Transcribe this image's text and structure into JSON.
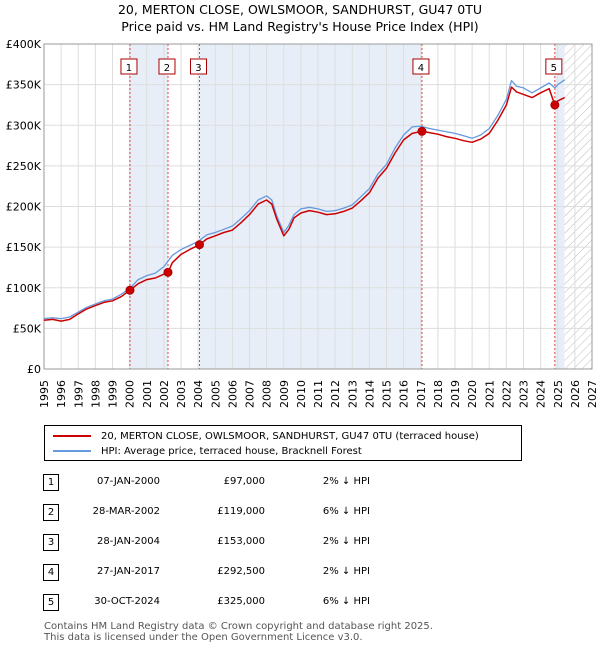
{
  "title_line1": "20, MERTON CLOSE, OWLSMOOR, SANDHURST, GU47 0TU",
  "title_line2": "Price paid vs. HM Land Registry's House Price Index (HPI)",
  "legend": {
    "property": "20, MERTON CLOSE, OWLSMOOR, SANDHURST, GU47 0TU (terraced house)",
    "hpi": "HPI: Average price, terraced house, Bracknell Forest"
  },
  "colors": {
    "property": "#cc0000",
    "hpi": "#6699dd",
    "shade": "#e8eef8",
    "vline": "#dd4444"
  },
  "sales": [
    {
      "num": "1",
      "date": "07-JAN-2000",
      "price": "£97,000",
      "hpi": "2% ↓ HPI"
    },
    {
      "num": "2",
      "date": "28-MAR-2002",
      "price": "£119,000",
      "hpi": "6% ↓ HPI"
    },
    {
      "num": "3",
      "date": "28-JAN-2004",
      "price": "£153,000",
      "hpi": "2% ↓ HPI"
    },
    {
      "num": "4",
      "date": "27-JAN-2017",
      "price": "£292,500",
      "hpi": "2% ↓ HPI"
    },
    {
      "num": "5",
      "date": "30-OCT-2024",
      "price": "£325,000",
      "hpi": "6% ↓ HPI"
    }
  ],
  "footer_line1": "Contains HM Land Registry data © Crown copyright and database right 2025.",
  "footer_line2": "This data is licensed under the Open Government Licence v3.0.",
  "chart_data": {
    "type": "line",
    "title": "20, MERTON CLOSE, OWLSMOOR, SANDHURST, GU47 0TU",
    "subtitle": "Price paid vs. HM Land Registry's House Price Index (HPI)",
    "xlabel": "",
    "ylabel": "",
    "xlim": [
      1995,
      2027
    ],
    "ylim": [
      0,
      400000
    ],
    "x_ticks": [
      "1995",
      "1996",
      "1997",
      "1998",
      "1999",
      "2000",
      "2001",
      "2002",
      "2003",
      "2004",
      "2005",
      "2006",
      "2007",
      "2008",
      "2009",
      "2010",
      "2011",
      "2012",
      "2013",
      "2014",
      "2015",
      "2016",
      "2017",
      "2018",
      "2019",
      "2020",
      "2021",
      "2022",
      "2023",
      "2024",
      "2025",
      "2026",
      "2027"
    ],
    "y_ticks": [
      {
        "value": 0,
        "label": "£0"
      },
      {
        "value": 50000,
        "label": "£50K"
      },
      {
        "value": 100000,
        "label": "£100K"
      },
      {
        "value": 150000,
        "label": "£150K"
      },
      {
        "value": 200000,
        "label": "£200K"
      },
      {
        "value": 250000,
        "label": "£250K"
      },
      {
        "value": 300000,
        "label": "£300K"
      },
      {
        "value": 350000,
        "label": "£350K"
      },
      {
        "value": 400000,
        "label": "£400K"
      }
    ],
    "grid": true,
    "shaded_ranges": [
      [
        2000.02,
        2002.24
      ],
      [
        2004.08,
        2017.07
      ],
      [
        2024.83,
        2025.4
      ]
    ],
    "future_hatch_from": 2025.4,
    "series": [
      {
        "name": "HPI: Average price, terraced house, Bracknell Forest",
        "x": [
          1995,
          1995.5,
          1996,
          1996.5,
          1997,
          1997.5,
          1998,
          1998.5,
          1999,
          1999.5,
          2000,
          2000.5,
          2001,
          2001.5,
          2002,
          2002.5,
          2003,
          2003.5,
          2004,
          2004.5,
          2005,
          2005.5,
          2006,
          2006.5,
          2007,
          2007.5,
          2008,
          2008.3,
          2008.6,
          2009,
          2009.3,
          2009.6,
          2010,
          2010.5,
          2011,
          2011.5,
          2012,
          2012.5,
          2013,
          2013.5,
          2014,
          2014.5,
          2015,
          2015.5,
          2016,
          2016.5,
          2017,
          2017.5,
          2018,
          2018.5,
          2019,
          2019.5,
          2020,
          2020.5,
          2021,
          2021.5,
          2022,
          2022.3,
          2022.6,
          2023,
          2023.5,
          2024,
          2024.5,
          2024.83,
          2025,
          2025.4
        ],
        "values": [
          62000,
          63000,
          62000,
          64000,
          70000,
          76000,
          80000,
          84000,
          86000,
          92000,
          99000,
          110000,
          115000,
          118000,
          126000,
          140000,
          147000,
          152000,
          157000,
          165000,
          168000,
          172000,
          176000,
          185000,
          195000,
          208000,
          213000,
          208000,
          188000,
          168000,
          177000,
          190000,
          197000,
          199000,
          197000,
          194000,
          195000,
          198000,
          202000,
          212000,
          222000,
          240000,
          252000,
          272000,
          288000,
          298000,
          299000,
          296000,
          294000,
          292000,
          290000,
          287000,
          284000,
          288000,
          296000,
          312000,
          332000,
          355000,
          348000,
          346000,
          340000,
          346000,
          352000,
          346000,
          350000,
          356000
        ]
      },
      {
        "name": "20, MERTON CLOSE, OWLSMOOR, SANDHURST, GU47 0TU (terraced house)",
        "x": [
          1995,
          1995.5,
          1996,
          1996.5,
          1997,
          1997.5,
          1998,
          1998.5,
          1999,
          1999.5,
          2000.02,
          2000.5,
          2001,
          2001.5,
          2002.24,
          2002.5,
          2003,
          2003.5,
          2004.08,
          2004.5,
          2005,
          2005.5,
          2006,
          2006.5,
          2007,
          2007.5,
          2008,
          2008.3,
          2008.6,
          2009,
          2009.3,
          2009.6,
          2010,
          2010.5,
          2011,
          2011.5,
          2012,
          2012.5,
          2013,
          2013.5,
          2014,
          2014.5,
          2015,
          2015.5,
          2016,
          2016.5,
          2017.07,
          2017.5,
          2018,
          2018.5,
          2019,
          2019.5,
          2020,
          2020.5,
          2021,
          2021.5,
          2022,
          2022.3,
          2022.6,
          2023,
          2023.5,
          2024,
          2024.5,
          2024.83,
          2025,
          2025.4
        ],
        "values": [
          60000,
          61000,
          59000,
          61000,
          68000,
          74000,
          78000,
          82000,
          84000,
          89000,
          97000,
          105000,
          110000,
          112000,
          119000,
          131000,
          141000,
          147000,
          153000,
          160000,
          164000,
          168000,
          171000,
          180000,
          190000,
          203000,
          208000,
          203000,
          184000,
          164000,
          172000,
          186000,
          192000,
          195000,
          193000,
          190000,
          191000,
          194000,
          198000,
          207000,
          217000,
          235000,
          247000,
          266000,
          282000,
          290000,
          292500,
          291000,
          289000,
          286000,
          284000,
          281000,
          279000,
          283000,
          290000,
          306000,
          325000,
          347000,
          341000,
          338000,
          334000,
          340000,
          345000,
          325000,
          330000,
          334000
        ]
      }
    ],
    "sale_markers": [
      {
        "label": "1",
        "x": 2000.02,
        "value": 97000
      },
      {
        "label": "2",
        "x": 2002.24,
        "value": 119000
      },
      {
        "label": "3",
        "x": 2004.08,
        "value": 153000
      },
      {
        "label": "4",
        "x": 2017.07,
        "value": 292500
      },
      {
        "label": "5",
        "x": 2024.83,
        "value": 325000
      }
    ]
  }
}
